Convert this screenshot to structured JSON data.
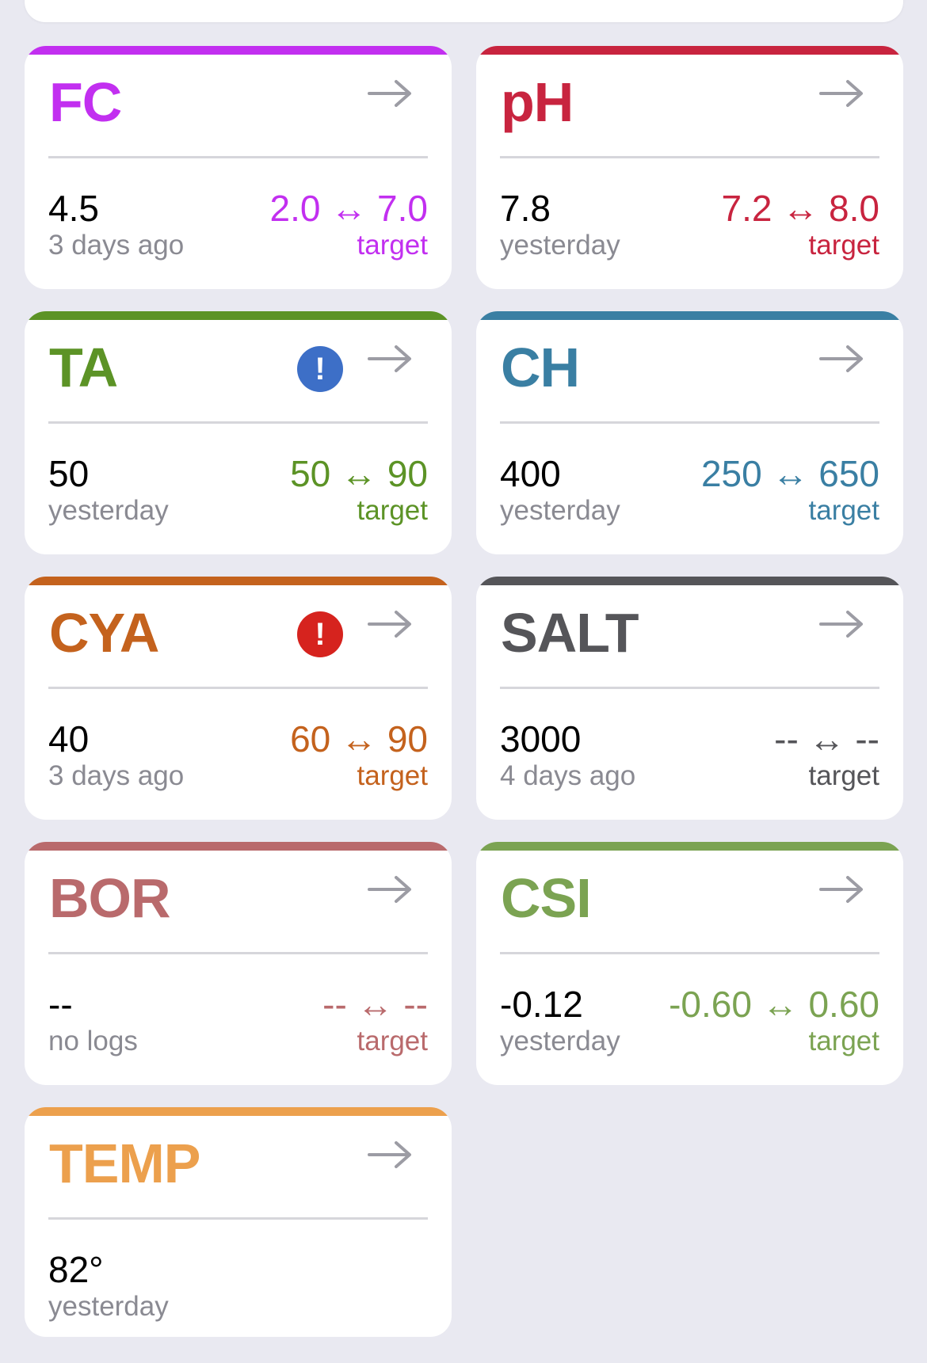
{
  "colors": {
    "fc": "#c22ff0",
    "ph": "#c8243f",
    "ta": "#5c9326",
    "ch": "#3a7fa3",
    "cya": "#c4621d",
    "salt": "#555559",
    "bor": "#b96a6c",
    "csi": "#7ba352",
    "temp": "#eca04d",
    "alert_info": "#3d6fc7",
    "alert_warn": "#d6231e"
  },
  "cards": [
    {
      "key": "fc",
      "title": "FC",
      "value": "4.5",
      "when": "3 days ago",
      "range": "2.0 ↔ 7.0",
      "target": "target",
      "alert": null
    },
    {
      "key": "ph",
      "title": "pH",
      "value": "7.8",
      "when": "yesterday",
      "range": "7.2 ↔ 8.0",
      "target": "target",
      "alert": null
    },
    {
      "key": "ta",
      "title": "TA",
      "value": "50",
      "when": "yesterday",
      "range": "50 ↔ 90",
      "target": "target",
      "alert": "info-alert-icon",
      "alert_glyph": "!"
    },
    {
      "key": "ch",
      "title": "CH",
      "value": "400",
      "when": "yesterday",
      "range": "250 ↔ 650",
      "target": "target",
      "alert": null
    },
    {
      "key": "cya",
      "title": "CYA",
      "value": "40",
      "when": "3 days ago",
      "range": "60 ↔ 90",
      "target": "target",
      "alert": "warning-alert-icon",
      "alert_glyph": "!"
    },
    {
      "key": "salt",
      "title": "SALT",
      "value": "3000",
      "when": "4 days ago",
      "range": "-- ↔ --",
      "target": "target",
      "alert": null
    },
    {
      "key": "bor",
      "title": "BOR",
      "value": "--",
      "when": "no logs",
      "range": "-- ↔ --",
      "target": "target",
      "alert": null
    },
    {
      "key": "csi",
      "title": "CSI",
      "value": "-0.12",
      "when": "yesterday",
      "range": "-0.60 ↔ 0.60",
      "target": "target",
      "alert": null
    },
    {
      "key": "temp",
      "title": "TEMP",
      "value": "82°",
      "when": "yesterday",
      "range": null,
      "target": null,
      "alert": null
    }
  ],
  "icons": {
    "navigate": "arrow-right-icon"
  }
}
